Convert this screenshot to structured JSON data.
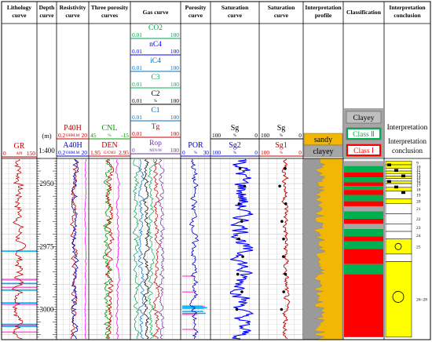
{
  "columns": [
    {
      "key": "lith",
      "title": "Lithology curve"
    },
    {
      "key": "depth",
      "title": "Depth curve"
    },
    {
      "key": "res",
      "title": "Resistivity curve"
    },
    {
      "key": "poro3",
      "title": "Three porosity curves"
    },
    {
      "key": "gas",
      "title": "Gas curve"
    },
    {
      "key": "por",
      "title": "Porosity curve"
    },
    {
      "key": "sat1",
      "title": "Saturation curve"
    },
    {
      "key": "sat2",
      "title": "Saturation curve"
    },
    {
      "key": "profile",
      "title": "Interpretation profile"
    },
    {
      "key": "class",
      "title": "Classification"
    },
    {
      "key": "concl",
      "title": "Interpretation conclusion"
    }
  ],
  "header": {
    "lith": {
      "name": "GR",
      "unit": "API",
      "min": "0",
      "max": "150"
    },
    "depth": {
      "unit": "(m)",
      "scale": "1:400"
    },
    "res": [
      {
        "name": "P40H",
        "unit": "OHM.M",
        "min": "0.2",
        "max": "20"
      },
      {
        "name": "A40H",
        "unit": "OHM.M",
        "min": "0.2",
        "max": "20"
      }
    ],
    "poro3": [
      {
        "name": "CNL",
        "unit": "%",
        "min": "45",
        "max": "-15"
      },
      {
        "name": "DEN",
        "unit": "G/CM3",
        "min": "1.95",
        "max": "2.95"
      }
    ],
    "gas": [
      {
        "name": "CO2",
        "min": "0.01",
        "max": "100"
      },
      {
        "name": "nC4",
        "min": "0.01",
        "max": "100"
      },
      {
        "name": "iC4",
        "min": "0.01",
        "max": "100"
      },
      {
        "name": "C3",
        "min": "0.01",
        "max": "100"
      },
      {
        "name": "C2",
        "unit": "%",
        "min": "0.01",
        "max": "100"
      },
      {
        "name": "C1",
        "min": "0.01",
        "max": "100"
      },
      {
        "name": "Tg",
        "min": "0.01",
        "max": "100"
      },
      {
        "name": "Rop",
        "unit": "MIN/M",
        "min": "0",
        "max": "100"
      }
    ],
    "por": {
      "name": "POR",
      "unit": "%",
      "min": "0",
      "max": "30"
    },
    "sat1": [
      {
        "name": "Sg",
        "unit": "%",
        "min": "100",
        "max": "0"
      },
      {
        "name": "Sg2",
        "unit": "%",
        "min": "100",
        "max": "0"
      }
    ],
    "sat2": [
      {
        "name": "Sg",
        "unit": "%",
        "min": "100",
        "max": "0"
      },
      {
        "name": "Sg1",
        "unit": "%",
        "min": "100",
        "max": "0"
      }
    ],
    "profile_legend": [
      {
        "label": "sandy",
        "color": "#f2b705"
      },
      {
        "label": "clayey",
        "color": "#a6a6a6"
      }
    ],
    "class_legend": [
      {
        "label": "Clayey",
        "color": "#a6a6a6"
      },
      {
        "label": "Class Ⅱ",
        "color": "#00b050"
      },
      {
        "label": "Class Ⅰ",
        "color": "#ff0000"
      }
    ],
    "concl_title": "Interpretation conclusion",
    "concl_overlay": "Interpretation"
  },
  "chart_data": {
    "type": "well-log",
    "depth_ticks": [
      2950,
      2975,
      3000
    ],
    "depth_range": [
      2940,
      3012
    ],
    "gas_colors": {
      "CO2": "#00a050",
      "nC4": "#0000ff",
      "iC4": "#0070c0",
      "C3": "#00b050",
      "C2": "#000000",
      "C1": "#0070c0",
      "Tg": "#c00000",
      "Rop": "#7030a0"
    },
    "classification_bands": [
      {
        "top": 2941.0,
        "bottom": 2943.0,
        "cls": "clayey"
      },
      {
        "top": 2943.0,
        "bottom": 2945.5,
        "cls": "class2"
      },
      {
        "top": 2945.5,
        "bottom": 2947.5,
        "cls": "class1"
      },
      {
        "top": 2947.5,
        "bottom": 2949.5,
        "cls": "class2"
      },
      {
        "top": 2949.5,
        "bottom": 2951.0,
        "cls": "class1"
      },
      {
        "top": 2951.0,
        "bottom": 2952.5,
        "cls": "class2"
      },
      {
        "top": 2952.5,
        "bottom": 2954.5,
        "cls": "class1"
      },
      {
        "top": 2954.5,
        "bottom": 2957.0,
        "cls": "class2"
      },
      {
        "top": 2957.0,
        "bottom": 2959.0,
        "cls": "class1"
      },
      {
        "top": 2959.0,
        "bottom": 2961.0,
        "cls": "clayey"
      },
      {
        "top": 2961.0,
        "bottom": 2964.0,
        "cls": "class2"
      },
      {
        "top": 2964.0,
        "bottom": 2966.0,
        "cls": "class1"
      },
      {
        "top": 2966.0,
        "bottom": 2968.0,
        "cls": "clayey"
      },
      {
        "top": 2968.0,
        "bottom": 2971.0,
        "cls": "class2"
      },
      {
        "top": 2971.0,
        "bottom": 2973.0,
        "cls": "class1"
      },
      {
        "top": 2973.0,
        "bottom": 2976.0,
        "cls": "class2"
      },
      {
        "top": 2976.0,
        "bottom": 2982.0,
        "cls": "class1"
      },
      {
        "top": 2982.0,
        "bottom": 2986.0,
        "cls": "class2"
      },
      {
        "top": 2986.0,
        "bottom": 3011.0,
        "cls": "class1"
      }
    ],
    "conclusion_layers": [
      {
        "top": 2941.0,
        "bottom": 2942.5,
        "label": "9",
        "fill": "#ffff00"
      },
      {
        "top": 2942.5,
        "bottom": 2944.0,
        "label": "10",
        "fill": "#ffff00"
      },
      {
        "top": 2944.0,
        "bottom": 2945.0,
        "label": "11",
        "fill": "#ffffff"
      },
      {
        "top": 2945.0,
        "bottom": 2946.0,
        "label": "12",
        "fill": "#ffff00"
      },
      {
        "top": 2946.0,
        "bottom": 2947.0,
        "label": "13",
        "fill": "#ffffff"
      },
      {
        "top": 2947.0,
        "bottom": 2948.0,
        "label": "14",
        "fill": "#ffff00"
      },
      {
        "top": 2948.0,
        "bottom": 2949.0,
        "label": "15",
        "fill": "#ffffff"
      },
      {
        "top": 2949.0,
        "bottom": 2950.0,
        "label": "16",
        "fill": "#ffff00"
      },
      {
        "top": 2950.0,
        "bottom": 2951.5,
        "label": "17",
        "fill": "#ffffff"
      },
      {
        "top": 2951.5,
        "bottom": 2953.0,
        "label": "18",
        "fill": "#ffff00"
      },
      {
        "top": 2953.0,
        "bottom": 2956.0,
        "label": "19",
        "fill": "#ffffff"
      },
      {
        "top": 2956.0,
        "bottom": 2958.0,
        "label": "20",
        "fill": "#ffff00"
      },
      {
        "top": 2958.0,
        "bottom": 2962.0,
        "label": "21",
        "fill": "#ffffff"
      },
      {
        "top": 2962.0,
        "bottom": 2966.0,
        "label": "22",
        "fill": "#ffffff"
      },
      {
        "top": 2966.0,
        "bottom": 2969.0,
        "label": "23",
        "fill": "#ffffff"
      },
      {
        "top": 2969.0,
        "bottom": 2972.0,
        "label": "24",
        "fill": "#ffffff"
      },
      {
        "top": 2972.0,
        "bottom": 2978.0,
        "label": "25",
        "fill": "#ffff00"
      },
      {
        "top": 2978.0,
        "bottom": 2981.0,
        "label": "",
        "fill": "#ffffff"
      },
      {
        "top": 2981.0,
        "bottom": 3011.0,
        "label": "26~28",
        "fill": "#ffff00"
      }
    ]
  }
}
